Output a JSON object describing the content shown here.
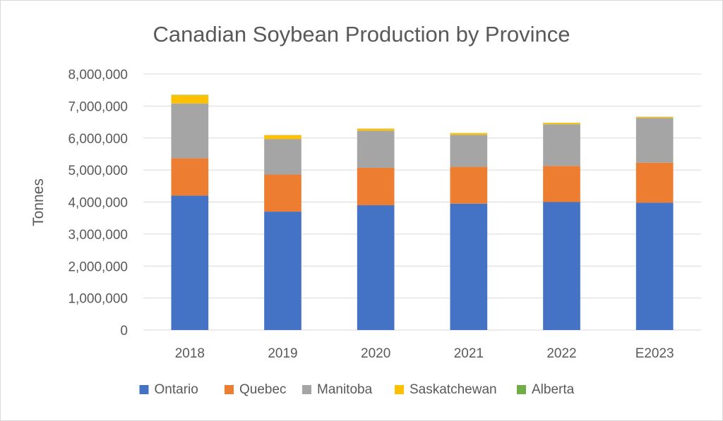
{
  "chart_data": {
    "type": "bar",
    "stacked": true,
    "title": "Canadian Soybean Production by Province",
    "xlabel": "",
    "ylabel": "Tonnes",
    "ylim": [
      0,
      8000000
    ],
    "yticks": [
      0,
      1000000,
      2000000,
      3000000,
      4000000,
      5000000,
      6000000,
      7000000,
      8000000
    ],
    "ytick_labels": [
      "0",
      "1,000,000",
      "2,000,000",
      "3,000,000",
      "4,000,000",
      "5,000,000",
      "6,000,000",
      "7,000,000",
      "8,000,000"
    ],
    "grid": true,
    "legend": "bottom",
    "categories": [
      "2018",
      "2019",
      "2020",
      "2021",
      "2022",
      "E2023"
    ],
    "series": [
      {
        "name": "Ontario",
        "color": "#4472C4",
        "values": [
          4200000,
          3700000,
          3900000,
          3950000,
          4000000,
          3980000
        ]
      },
      {
        "name": "Quebec",
        "color": "#ED7D31",
        "values": [
          1170000,
          1160000,
          1170000,
          1150000,
          1130000,
          1250000
        ]
      },
      {
        "name": "Manitoba",
        "color": "#A5A5A5",
        "values": [
          1710000,
          1110000,
          1160000,
          1000000,
          1300000,
          1400000
        ]
      },
      {
        "name": "Saskatchewan",
        "color": "#FFC000",
        "values": [
          260000,
          120000,
          60000,
          50000,
          40000,
          30000
        ]
      },
      {
        "name": "Alberta",
        "color": "#70AD47",
        "values": [
          10000,
          5000,
          5000,
          5000,
          5000,
          5000
        ]
      }
    ]
  }
}
